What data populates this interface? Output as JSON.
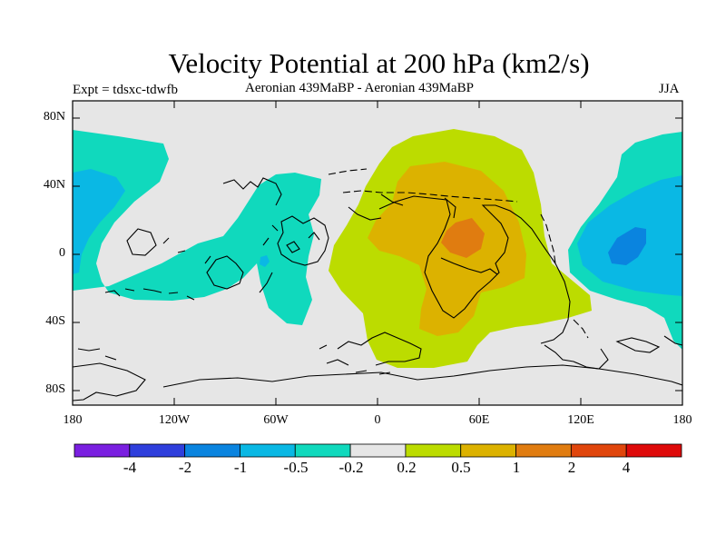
{
  "title": "Velocity Potential at 200 hPa (km2/s)",
  "subtitle_left": "Expt = tdsxc-tdwfb",
  "subtitle_center": "Aeronian 439MaBP - Aeronian 439MaBP",
  "subtitle_right": "JJA",
  "y_axis": {
    "labels": [
      "80N",
      "40N",
      "0",
      "40S",
      "80S"
    ]
  },
  "x_axis": {
    "labels": [
      "180",
      "120W",
      "60W",
      "0",
      "60E",
      "120E",
      "180"
    ]
  },
  "colorbar": {
    "labels": [
      "-4",
      "-2",
      "-1",
      "-0.5",
      "-0.2",
      "0.2",
      "0.5",
      "1",
      "2",
      "4"
    ],
    "colors": [
      "#7a1fe0",
      "#2f3fdc",
      "#0a84df",
      "#0ab8e4",
      "#10d9bd",
      "#e6e6e6",
      "#bcdc00",
      "#dcb200",
      "#e07c10",
      "#e0460c",
      "#de0a0a"
    ]
  },
  "field_colors": {
    "neutral": "#e6e6e6",
    "neg_0_2": "#10d9bd",
    "neg_0_5": "#0ab8e4",
    "neg_1": "#0a84df",
    "pos_0_2": "#bcdc00",
    "pos_0_5": "#dcb200",
    "pos_1": "#e07c10"
  }
}
